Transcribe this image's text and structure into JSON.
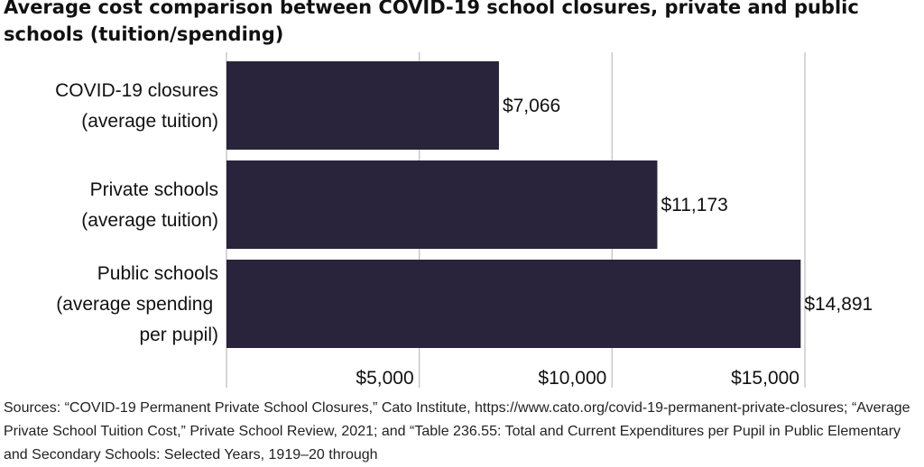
{
  "chart_data": {
    "type": "bar",
    "orientation": "horizontal",
    "title": "Average cost comparison between COVID-19 school closures, private and public schools (tuition/spending)",
    "categories": [
      [
        "COVID-19 closures",
        "(average tuition)"
      ],
      [
        "Private schools",
        "(average tuition)"
      ],
      [
        "Public schools",
        "(average spending ",
        "per pupil)"
      ]
    ],
    "values": [
      7066,
      11173,
      14891
    ],
    "value_labels": [
      "$7,066",
      "$11,173",
      "$14,891"
    ],
    "ticks": [
      5000,
      10000,
      15000
    ],
    "tick_labels": [
      "$5,000",
      "$10,000",
      "$15,000"
    ],
    "xlim": [
      0,
      15000
    ],
    "grid": true,
    "bar_color": "#29233b",
    "grid_color": "#c8c8c8"
  },
  "source": "Sources: “COVID-19 Permanent Private School Closures,” Cato Institute, https://www.cato.org/covid-19-permanent-private-closures; “Average Private School Tuition Cost,” Private School Review, 2021; and “Table 236.55: Total and Current Expenditures per Pupil in Public Elementary and Secondary Schools: Selected Years, 1919–20 through"
}
